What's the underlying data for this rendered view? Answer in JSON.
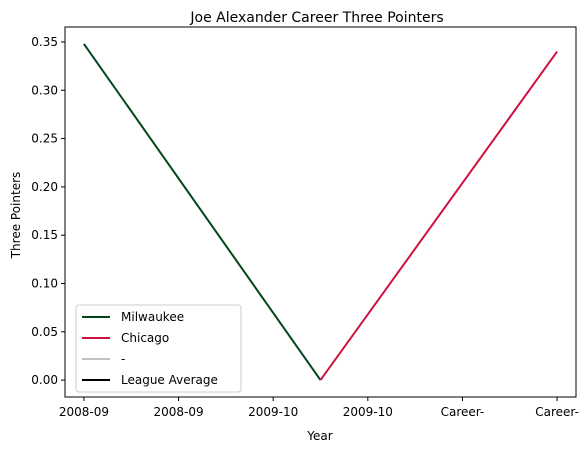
{
  "chart_data": {
    "type": "line",
    "title": "Joe Alexander Career Three Pointers",
    "xlabel": "Year",
    "ylabel": "Three Pointers",
    "x_tick_labels": [
      "2008-09",
      "2008-09",
      "2009-10",
      "2009-10",
      "Career-",
      "Career-"
    ],
    "y_ticks": [
      0.0,
      0.05,
      0.1,
      0.15,
      0.2,
      0.25,
      0.3,
      0.35
    ],
    "y_tick_labels": [
      "0.00",
      "0.05",
      "0.10",
      "0.15",
      "0.20",
      "0.25",
      "0.30",
      "0.35"
    ],
    "xlim": [
      -0.2,
      5.2
    ],
    "ylim": [
      -0.0175,
      0.3655
    ],
    "grid": false,
    "legend_position": "lower-left",
    "series": [
      {
        "name": "Milwaukee",
        "color": "#00471B",
        "x": [
          0,
          2.5
        ],
        "y": [
          0.348,
          0.0
        ]
      },
      {
        "name": "Chicago",
        "color": "#CE1141",
        "x": [
          2.5,
          5
        ],
        "y": [
          0.0,
          0.34
        ]
      },
      {
        "name": "-",
        "color": "#BEC0C2",
        "x": [],
        "y": []
      },
      {
        "name": "League Average",
        "color": "#000000",
        "x": [],
        "y": []
      }
    ]
  }
}
